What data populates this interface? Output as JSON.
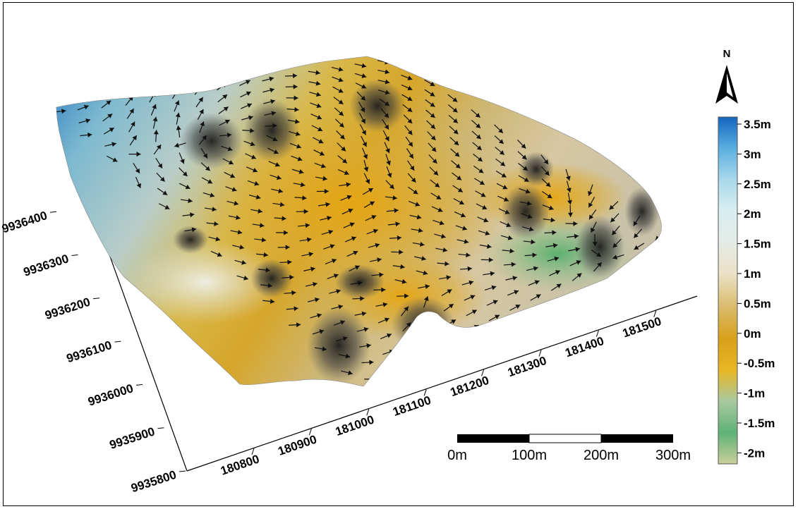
{
  "map": {
    "x_axis_ticks": [
      "180800",
      "180900",
      "181000",
      "181100",
      "181200",
      "181300",
      "181400",
      "181500"
    ],
    "y_axis_ticks": [
      "9935800",
      "9935900",
      "9936000",
      "9936100",
      "9936200",
      "9936300",
      "9936400"
    ],
    "north_label": "N",
    "scale_bar": {
      "labels": [
        "0m",
        "100m",
        "200m",
        "300m"
      ]
    },
    "legend": {
      "labels": [
        "3.5m",
        "3m",
        "2.5m",
        "2m",
        "1.5m",
        "1m",
        "0.5m",
        "0m",
        "-0.5m",
        "-1m",
        "-1.5m",
        "-2m"
      ],
      "colors": [
        "#1565c0",
        "#5aaee0",
        "#a8d8ea",
        "#d8eef0",
        "#e4ebe6",
        "#ebe2c8",
        "#d9ba6a",
        "#d9a01a",
        "#e8b625",
        "#a8c8a0",
        "#5fb277",
        "#c9cf9a"
      ]
    },
    "vector_field": "flow-direction arrows"
  }
}
